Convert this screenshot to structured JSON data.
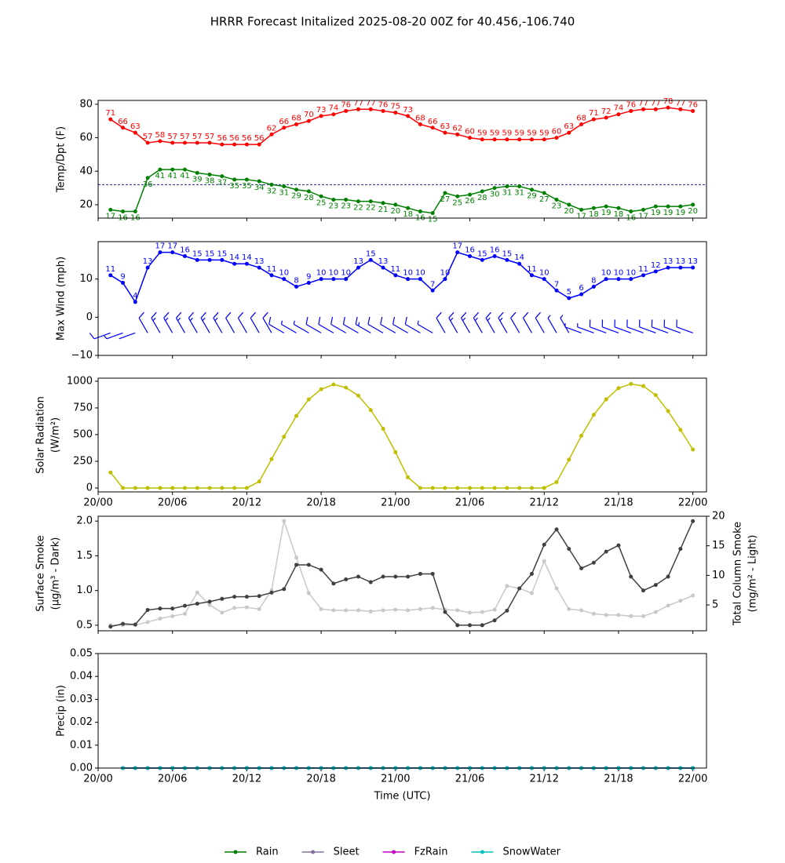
{
  "title": "HRRR Forecast Initalized 2025-08-20 00Z for 40.456,-106.740",
  "chart_data": [
    {
      "type": "line",
      "ylabel": [
        "Temp/Dpt (F)"
      ],
      "x": [
        1,
        2,
        3,
        4,
        5,
        6,
        7,
        8,
        9,
        10,
        11,
        12,
        13,
        14,
        15,
        16,
        17,
        18,
        19,
        20,
        21,
        22,
        23,
        24,
        25,
        26,
        27,
        28,
        29,
        30,
        31,
        32,
        33,
        34,
        35,
        36,
        37,
        38,
        39,
        40,
        41,
        42,
        43,
        44,
        45,
        46,
        47,
        48
      ],
      "xlim": [
        0,
        49.1
      ],
      "xticks": [
        0,
        6,
        12,
        18,
        24,
        30,
        36,
        42,
        48
      ],
      "ylim": [
        12,
        82.3
      ],
      "yticks": [
        20,
        40,
        60,
        80
      ],
      "hline": 32,
      "data_labels": true,
      "series": [
        {
          "color": "#ff0000",
          "label_side": "above",
          "values": [
            71,
            66,
            63,
            57,
            58,
            57,
            57,
            57,
            57,
            56,
            56,
            56,
            56,
            62,
            66,
            68,
            70,
            73,
            74,
            76,
            77,
            77,
            76,
            75,
            73,
            68,
            66,
            63,
            62,
            60,
            59,
            59,
            59,
            59,
            59,
            59,
            60,
            63,
            68,
            71,
            72,
            74,
            76,
            77,
            77,
            78,
            77,
            76
          ]
        },
        {
          "color": "#008000",
          "label_side": "below",
          "values": [
            17,
            16,
            16,
            36,
            41,
            41,
            41,
            39,
            38,
            37,
            35,
            35,
            34,
            32,
            31,
            29,
            28,
            25,
            23,
            23,
            22,
            22,
            21,
            20,
            18,
            16,
            15,
            27,
            25,
            26,
            28,
            30,
            31,
            31,
            29,
            27,
            23,
            20,
            17,
            18,
            19,
            18,
            16,
            17,
            19,
            19,
            19,
            20
          ]
        }
      ]
    },
    {
      "type": "wind",
      "ylabel": [
        "Max Wind (mph)"
      ],
      "x": [
        1,
        2,
        3,
        4,
        5,
        6,
        7,
        8,
        9,
        10,
        11,
        12,
        13,
        14,
        15,
        16,
        17,
        18,
        19,
        20,
        21,
        22,
        23,
        24,
        25,
        26,
        27,
        28,
        29,
        30,
        31,
        32,
        33,
        34,
        35,
        36,
        37,
        38,
        39,
        40,
        41,
        42,
        43,
        44,
        45,
        46,
        47,
        48
      ],
      "xlim": [
        0,
        49.1
      ],
      "xticks": [
        0,
        6,
        12,
        18,
        24,
        30,
        36,
        42,
        48
      ],
      "ylim": [
        -10,
        19.8
      ],
      "yticks": [
        {
          "value": -10,
          "label": "−10"
        },
        0,
        10
      ],
      "data_labels": true,
      "series": [
        {
          "color": "#0000ff",
          "label_side": "above",
          "values": [
            11,
            9,
            4,
            13,
            17,
            17,
            16,
            15,
            15,
            15,
            14,
            14,
            13,
            11,
            10,
            8,
            9,
            10,
            10,
            10,
            13,
            15,
            13,
            11,
            10,
            10,
            7,
            10,
            17,
            16,
            15,
            16,
            15,
            14,
            11,
            10,
            7,
            5,
            6,
            8,
            10,
            10,
            10,
            11,
            12,
            13,
            13,
            13
          ],
          "directions": [
            250,
            250,
            250,
            330,
            330,
            330,
            330,
            330,
            330,
            330,
            330,
            330,
            330,
            330,
            300,
            300,
            300,
            300,
            300,
            300,
            300,
            300,
            300,
            300,
            300,
            300,
            300,
            330,
            330,
            330,
            330,
            330,
            330,
            330,
            330,
            330,
            330,
            330,
            290,
            290,
            290,
            290,
            290,
            290,
            290,
            290,
            290,
            290
          ]
        }
      ]
    },
    {
      "type": "line",
      "ylabel": [
        "Solar Radiation",
        "(W/m²)"
      ],
      "x": [
        1,
        2,
        3,
        4,
        5,
        6,
        7,
        8,
        9,
        10,
        11,
        12,
        13,
        14,
        15,
        16,
        17,
        18,
        19,
        20,
        21,
        22,
        23,
        24,
        25,
        26,
        27,
        28,
        29,
        30,
        31,
        32,
        33,
        34,
        35,
        36,
        37,
        38,
        39,
        40,
        41,
        42,
        43,
        44,
        45,
        46,
        47,
        48
      ],
      "xlim": [
        0,
        49.1
      ],
      "xticks": [
        {
          "value": 0,
          "label": "20/00"
        },
        {
          "value": 6,
          "label": "20/06"
        },
        {
          "value": 12,
          "label": "20/12"
        },
        {
          "value": 18,
          "label": "20/18"
        },
        {
          "value": 24,
          "label": "21/00"
        },
        {
          "value": 30,
          "label": "21/06"
        },
        {
          "value": 36,
          "label": "21/12"
        },
        {
          "value": 42,
          "label": "21/18"
        },
        {
          "value": 48,
          "label": "22/00"
        }
      ],
      "ylim": [
        -37,
        1029
      ],
      "yticks": [
        0,
        250,
        500,
        750,
        1000
      ],
      "series": [
        {
          "color": "#bfbf00",
          "values": [
            145,
            0,
            0,
            0,
            0,
            0,
            0,
            0,
            0,
            0,
            0,
            0,
            60,
            270,
            480,
            675,
            830,
            925,
            970,
            940,
            865,
            730,
            555,
            335,
            100,
            0,
            0,
            0,
            0,
            0,
            0,
            0,
            0,
            0,
            0,
            0,
            55,
            265,
            490,
            685,
            830,
            935,
            975,
            955,
            870,
            720,
            545,
            360
          ]
        }
      ]
    },
    {
      "type": "line",
      "ylabel": [
        "Surface Smoke",
        "(μg/m³ - Dark)"
      ],
      "y2label": [
        "Total Column Smoke",
        "(mg/m² - Light)"
      ],
      "x": [
        1,
        2,
        3,
        4,
        5,
        6,
        7,
        8,
        9,
        10,
        11,
        12,
        13,
        14,
        15,
        16,
        17,
        18,
        19,
        20,
        21,
        22,
        23,
        24,
        25,
        26,
        27,
        28,
        29,
        30,
        31,
        32,
        33,
        34,
        35,
        36,
        37,
        38,
        39,
        40,
        41,
        42,
        43,
        44,
        45,
        46,
        47,
        48
      ],
      "xlim": [
        0,
        49.1
      ],
      "xticks": [
        0,
        6,
        12,
        18,
        24,
        30,
        36,
        42,
        48
      ],
      "ylim": [
        0.42,
        2.07
      ],
      "yticks": [
        0.5,
        {
          "value": 1,
          "label": "1.0"
        },
        1.5,
        {
          "value": 2,
          "label": "2.0"
        }
      ],
      "y2lim": [
        0.63,
        20
      ],
      "y2ticks": [
        5,
        10,
        15,
        20
      ],
      "series": [
        {
          "color": "#c8c8c8",
          "axis": "y2",
          "values": [
            1.6,
            1.6,
            1.6,
            2.1,
            2.7,
            3.1,
            3.5,
            7.1,
            5.0,
            3.7,
            4.5,
            4.6,
            4.3,
            7.5,
            19.2,
            13.0,
            7.0,
            4.3,
            4.1,
            4.1,
            4.1,
            3.9,
            4.1,
            4.2,
            4.1,
            4.3,
            4.5,
            4.2,
            4.1,
            3.7,
            3.8,
            4.2,
            8.2,
            7.8,
            7.0,
            12.4,
            7.8,
            4.3,
            4.1,
            3.5,
            3.3,
            3.3,
            3.1,
            3.1,
            3.8,
            4.9,
            5.7,
            6.6
          ]
        },
        {
          "color": "#404040",
          "values": [
            0.48,
            0.52,
            0.51,
            0.72,
            0.74,
            0.74,
            0.78,
            0.81,
            0.84,
            0.88,
            0.91,
            0.91,
            0.92,
            0.97,
            1.02,
            1.37,
            1.37,
            1.3,
            1.1,
            1.16,
            1.2,
            1.12,
            1.2,
            1.2,
            1.2,
            1.24,
            1.24,
            0.69,
            0.5,
            0.5,
            0.5,
            0.57,
            0.71,
            1.03,
            1.24,
            1.66,
            1.88,
            1.6,
            1.32,
            1.4,
            1.56,
            1.65,
            1.2,
            1.0,
            1.08,
            1.2,
            1.6,
            2.0
          ]
        }
      ]
    },
    {
      "type": "line",
      "ylabel": [
        "Precip (in)"
      ],
      "xlabel": "Time (UTC)",
      "legend": "bottom",
      "x": [
        1,
        2,
        3,
        4,
        5,
        6,
        7,
        8,
        9,
        10,
        11,
        12,
        13,
        14,
        15,
        16,
        17,
        18,
        19,
        20,
        21,
        22,
        23,
        24,
        25,
        26,
        27,
        28,
        29,
        30,
        31,
        32,
        33,
        34,
        35,
        36,
        37,
        38,
        39,
        40,
        41,
        42,
        43,
        44,
        45,
        46,
        47,
        48
      ],
      "xlim": [
        0,
        49.1
      ],
      "xticks": [
        {
          "value": 0,
          "label": "20/00"
        },
        {
          "value": 6,
          "label": "20/06"
        },
        {
          "value": 12,
          "label": "20/12"
        },
        {
          "value": 18,
          "label": "20/18"
        },
        {
          "value": 24,
          "label": "21/00"
        },
        {
          "value": 30,
          "label": "21/06"
        },
        {
          "value": 36,
          "label": "21/12"
        },
        {
          "value": 42,
          "label": "21/18"
        },
        {
          "value": 48,
          "label": "22/00"
        }
      ],
      "ylim": [
        0,
        0.05
      ],
      "yticks": [
        {
          "value": 0,
          "label": "0.00"
        },
        0.01,
        0.02,
        0.03,
        0.04,
        0.05
      ],
      "series": [
        {
          "name": "Rain",
          "color": "#008000",
          "values": [
            null,
            0,
            0,
            0,
            0,
            0,
            0,
            0,
            0,
            0,
            0,
            0,
            0,
            0,
            0,
            0,
            0,
            0,
            0,
            0,
            0,
            0,
            0,
            0,
            0,
            0,
            0,
            0,
            0,
            0,
            0,
            0,
            0,
            0,
            0,
            0,
            0,
            0,
            0,
            0,
            0,
            0,
            0,
            0,
            0,
            0,
            0,
            0
          ]
        },
        {
          "name": "Sleet",
          "color": "#8470a0",
          "values": [
            null,
            0,
            0,
            0,
            0,
            0,
            0,
            0,
            0,
            0,
            0,
            0,
            0,
            0,
            0,
            0,
            0,
            0,
            0,
            0,
            0,
            0,
            0,
            0,
            0,
            0,
            0,
            0,
            0,
            0,
            0,
            0,
            0,
            0,
            0,
            0,
            0,
            0,
            0,
            0,
            0,
            0,
            0,
            0,
            0,
            0,
            0,
            0
          ]
        },
        {
          "name": "FzRain",
          "color": "#c000c0",
          "values": [
            null,
            0,
            0,
            0,
            0,
            0,
            0,
            0,
            0,
            0,
            0,
            0,
            0,
            0,
            0,
            0,
            0,
            0,
            0,
            0,
            0,
            0,
            0,
            0,
            0,
            0,
            0,
            0,
            0,
            0,
            0,
            0,
            0,
            0,
            0,
            0,
            0,
            0,
            0,
            0,
            0,
            0,
            0,
            0,
            0,
            0,
            0,
            0
          ]
        },
        {
          "name": "SnowWater",
          "color": "#00bfbf",
          "values": [
            null,
            0,
            0,
            0,
            0,
            0,
            0,
            0,
            0,
            0,
            0,
            0,
            0,
            0,
            0,
            0,
            0,
            0,
            0,
            0,
            0,
            0,
            0,
            0,
            0,
            0,
            0,
            0,
            0,
            0,
            0,
            0,
            0,
            0,
            0,
            0,
            0,
            0,
            0,
            0,
            0,
            0,
            0,
            0,
            0,
            0,
            0,
            0
          ]
        }
      ]
    }
  ]
}
